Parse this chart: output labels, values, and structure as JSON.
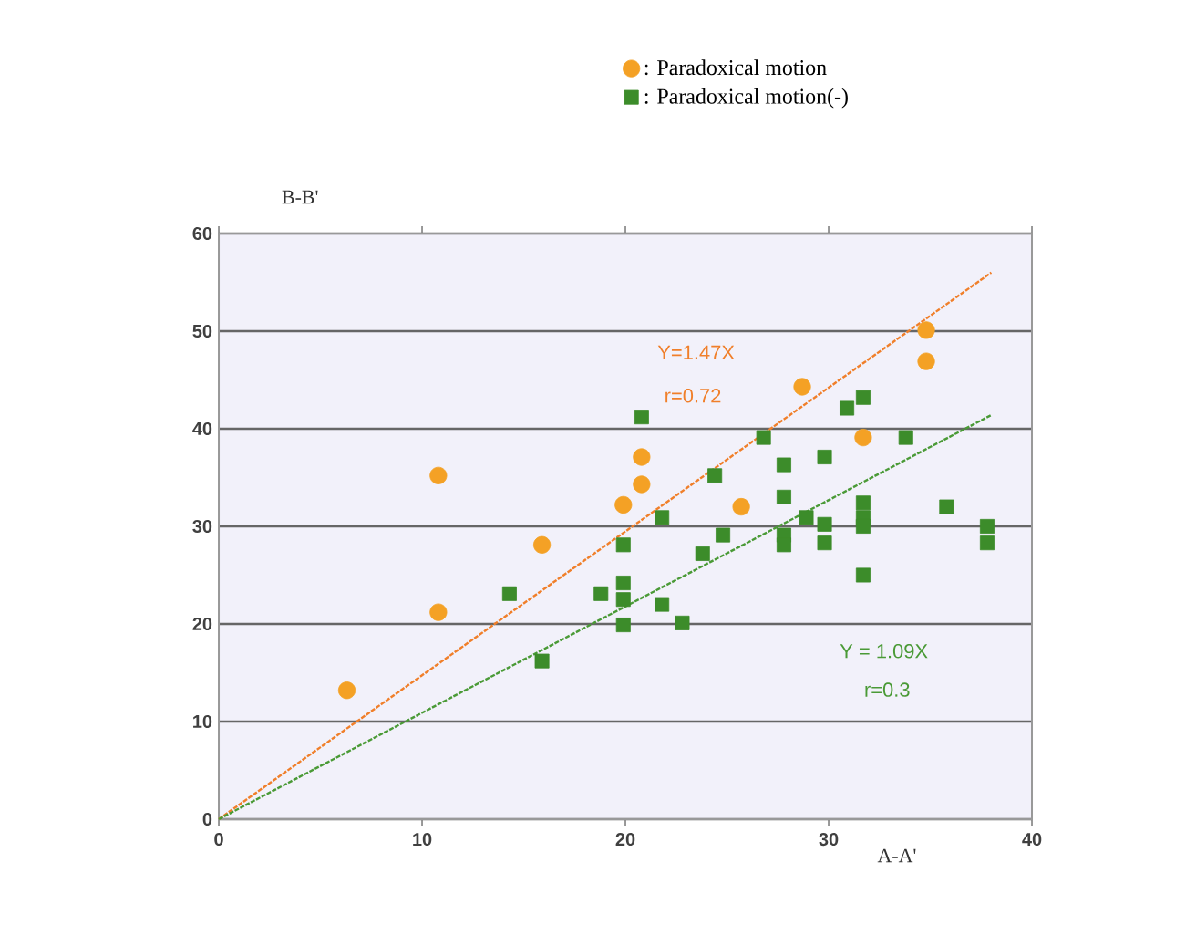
{
  "chart_data": {
    "type": "scatter",
    "xlabel": "A-A'",
    "ylabel": "B-B'",
    "xlim": [
      0,
      40
    ],
    "ylim": [
      0,
      60
    ],
    "xticks": [
      0,
      10,
      20,
      30,
      40
    ],
    "yticks": [
      0,
      10,
      20,
      30,
      40,
      50,
      60
    ],
    "grid": "y",
    "legend": "top right",
    "series": [
      {
        "name": ": Paradoxical motion",
        "color": "#f4a125",
        "marker": "circle",
        "x": [
          6.3,
          10.8,
          10.8,
          15.9,
          19.9,
          20.8,
          20.8,
          25.7,
          28.7,
          31.7,
          34.8,
          34.8
        ],
        "values": [
          13.2,
          21.2,
          35.2,
          28.1,
          32.2,
          34.3,
          37.1,
          32.0,
          44.3,
          39.1,
          50.1,
          46.9
        ]
      },
      {
        "name": ": Paradoxical motion(-)",
        "color": "#3c8c2a",
        "marker": "square",
        "x": [
          14.3,
          15.9,
          18.8,
          19.9,
          19.9,
          19.9,
          19.9,
          20.8,
          21.8,
          21.8,
          22.8,
          23.8,
          24.4,
          24.8,
          26.8,
          27.8,
          27.8,
          27.8,
          27.8,
          28.9,
          29.8,
          29.8,
          29.8,
          30.9,
          31.7,
          31.7,
          31.7,
          31.7,
          31.7,
          33.8,
          35.8,
          37.8,
          37.8
        ],
        "values": [
          23.1,
          16.2,
          23.1,
          28.1,
          24.2,
          22.5,
          19.9,
          41.2,
          30.9,
          22.0,
          20.1,
          27.2,
          35.2,
          29.1,
          39.1,
          36.3,
          33.0,
          29.1,
          28.1,
          30.9,
          37.1,
          30.2,
          28.3,
          42.1,
          43.2,
          32.4,
          30.9,
          30.0,
          25.0,
          39.1,
          32.0,
          30.0,
          28.3
        ]
      },
      {
        "type": "line",
        "color": "#f07f2a",
        "marker": "none",
        "line_style": "dashed",
        "x": [
          0,
          38
        ],
        "values": [
          0,
          56
        ]
      },
      {
        "type": "line",
        "color": "#4a9a36",
        "marker": "none",
        "line_style": "dashed",
        "x": [
          0,
          38
        ],
        "values": [
          0,
          41.4
        ]
      }
    ],
    "annotations": [
      "Y=1.47X",
      "r=0.72",
      "Y = 1.09X",
      "r=0.3"
    ]
  }
}
